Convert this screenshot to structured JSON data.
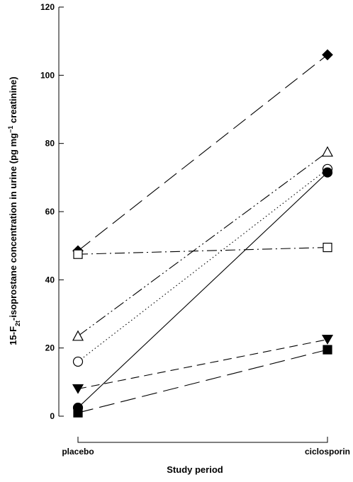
{
  "chart_data": {
    "type": "line",
    "title": "",
    "xlabel": "Study period",
    "ylabel_parts": [
      "15-F",
      "2t",
      "-isoprostane concentration in urine (pg  mg",
      "−1",
      " creatinine)"
    ],
    "categories": [
      "placebo",
      "ciclosporin"
    ],
    "ylim": [
      0,
      120
    ],
    "yticks": [
      0,
      20,
      40,
      60,
      80,
      100,
      120
    ],
    "grid": false,
    "legend": "none",
    "series": [
      {
        "marker": "diamond-filled",
        "dash": "long-dash",
        "values": [
          48.5,
          106
        ]
      },
      {
        "marker": "triangle-open",
        "dash": "dash-dot-dot",
        "values": [
          23.5,
          77.5
        ]
      },
      {
        "marker": "circle-open",
        "dash": "dotted",
        "values": [
          16,
          72.5
        ]
      },
      {
        "marker": "circle-filled",
        "dash": "solid",
        "values": [
          2.5,
          71.5
        ]
      },
      {
        "marker": "square-open",
        "dash": "dash-dot",
        "values": [
          47.5,
          49.5
        ]
      },
      {
        "marker": "triangle-down-filled",
        "dash": "dashed",
        "values": [
          8,
          22.5
        ]
      },
      {
        "marker": "square-filled",
        "dash": "long-dash",
        "values": [
          1,
          19.5
        ]
      }
    ]
  }
}
